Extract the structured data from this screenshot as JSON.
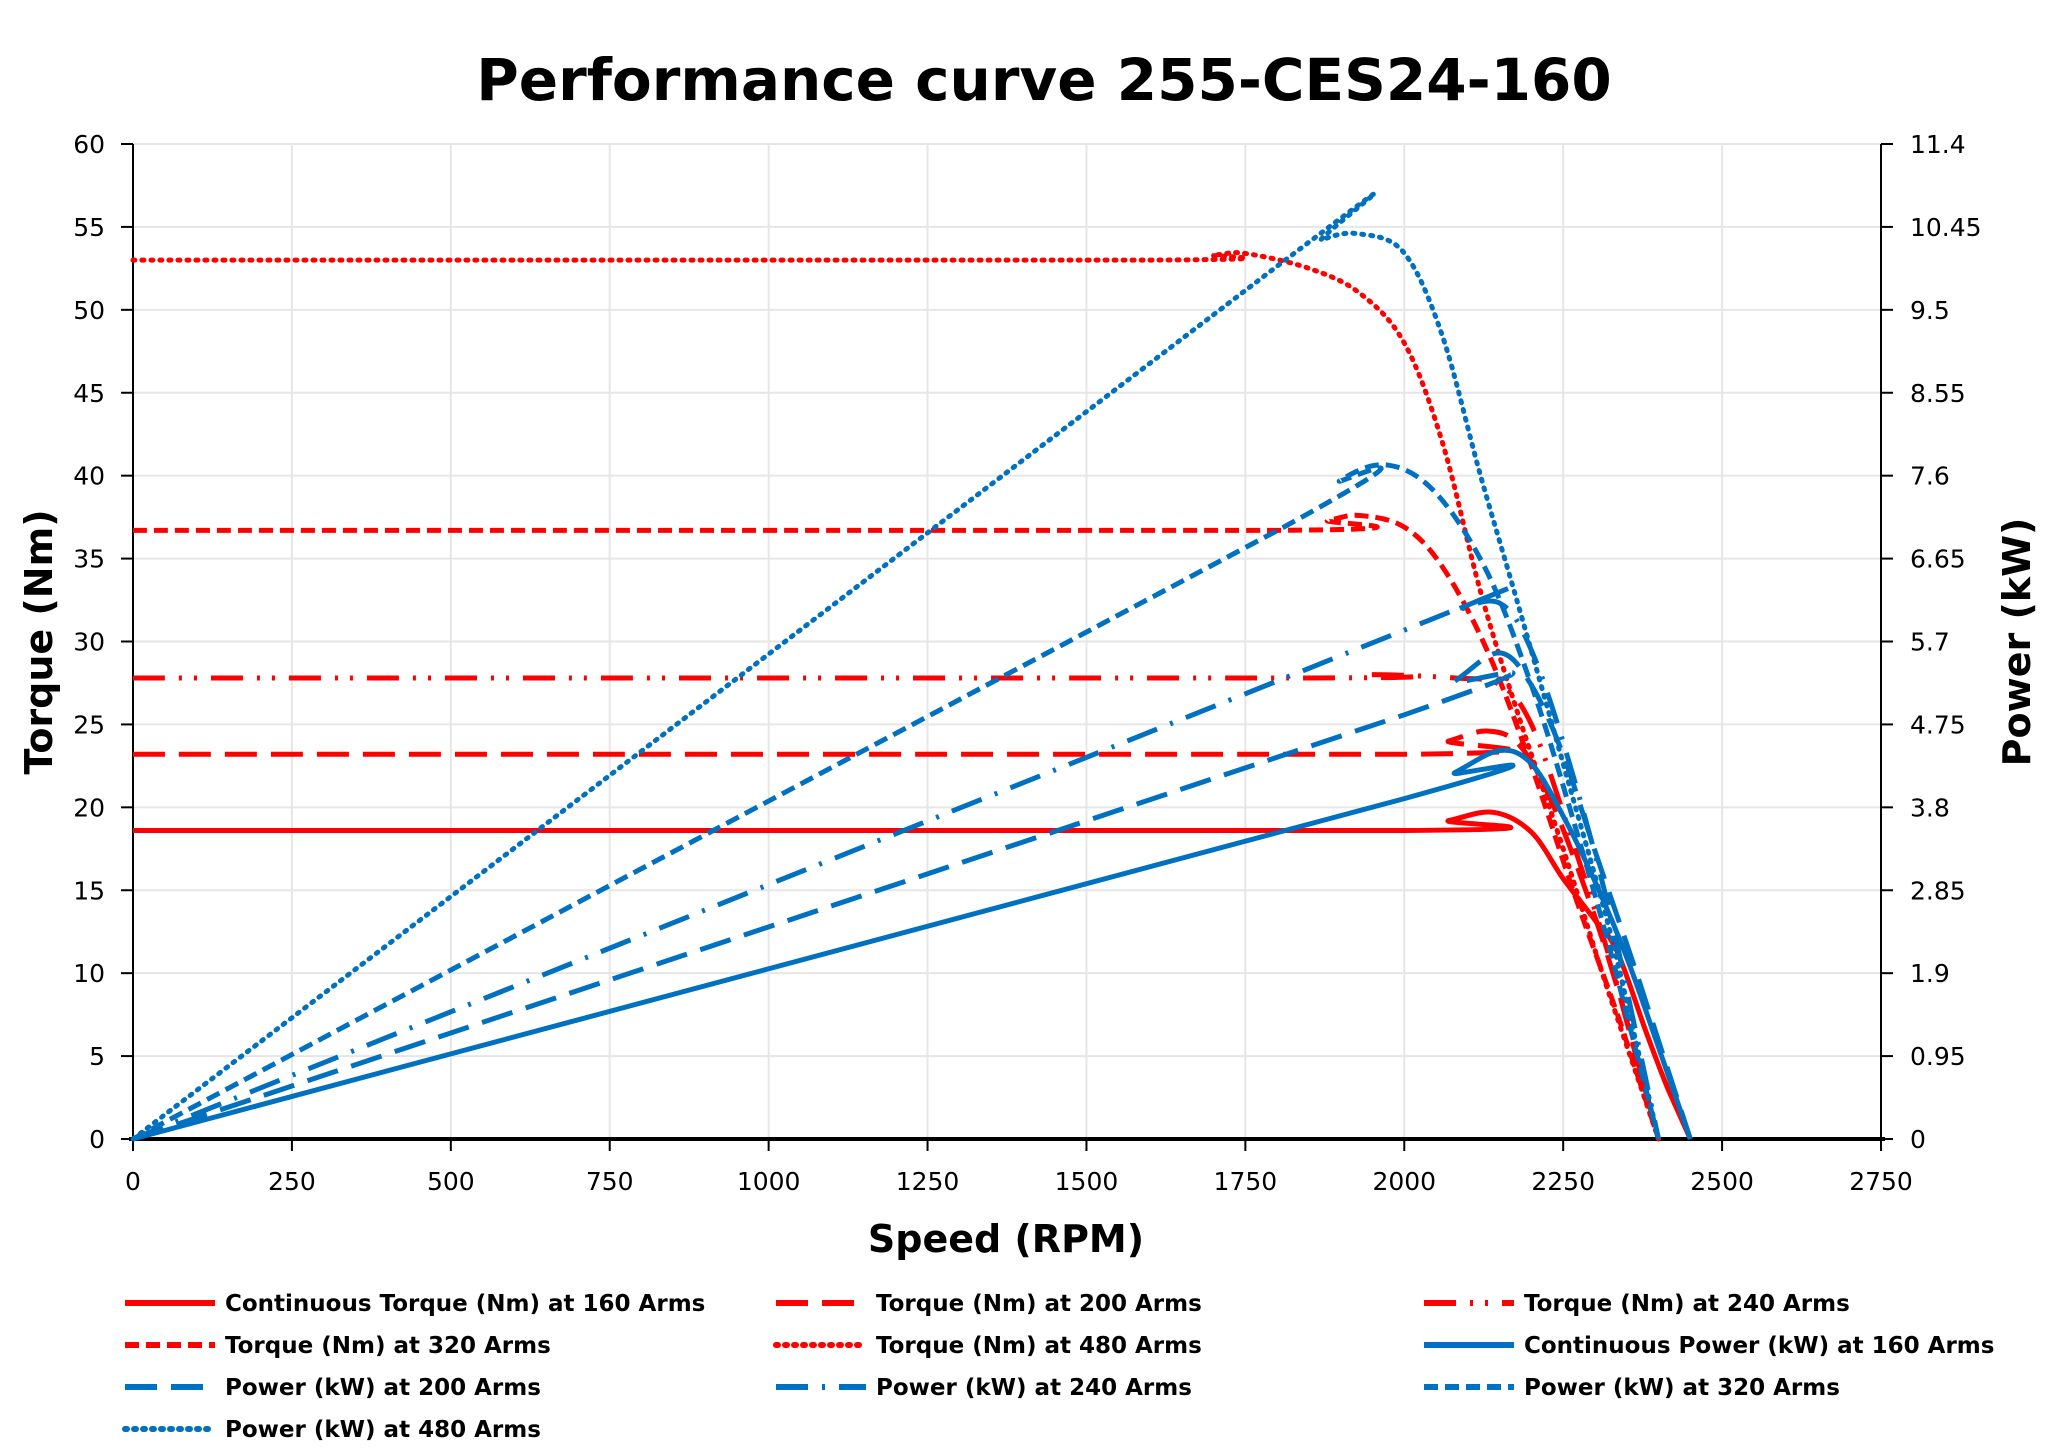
{
  "chart_data": {
    "type": "line",
    "title": "Performance curve 255-CES24-160",
    "xlabel": "Speed (RPM)",
    "ylabel": "Torque (Nm)",
    "y2label": "Power (kW)",
    "xlim": [
      0,
      2750
    ],
    "ylim": [
      0,
      60
    ],
    "y2lim": [
      0,
      11.4
    ],
    "x_ticks": [
      0,
      250,
      500,
      750,
      1000,
      1250,
      1500,
      1750,
      2000,
      2250,
      2500,
      2750
    ],
    "y_ticks": [
      0,
      5,
      10,
      15,
      20,
      25,
      30,
      35,
      40,
      45,
      50,
      55,
      60
    ],
    "y2_ticks": [
      "0",
      "0.95",
      "1.9",
      "2.85",
      "3.8",
      "4.75",
      "5.7",
      "6.65",
      "7.6",
      "8.55",
      "9.5",
      "10.45",
      "11.4"
    ],
    "grid": true,
    "legend_position": "bottom",
    "colors": {
      "torque": "#ff0000",
      "power": "#0070c0"
    },
    "series": [
      {
        "name": "Continuous Torque (Nm) at 160 Arms",
        "axis": "left",
        "color": "#ff0000",
        "style": "solid",
        "points": [
          [
            0,
            18.6
          ],
          [
            2000,
            18.6
          ],
          [
            2070,
            19.2
          ],
          [
            2140,
            19.7
          ],
          [
            2200,
            18.5
          ],
          [
            2250,
            15.7
          ],
          [
            2300,
            13.2
          ],
          [
            2335,
            11.3
          ],
          [
            2380,
            6.5
          ],
          [
            2415,
            3.0
          ],
          [
            2450,
            0
          ]
        ]
      },
      {
        "name": "Torque (Nm) at 200 Arms",
        "axis": "left",
        "color": "#ff0000",
        "style": "long-dash",
        "points": [
          [
            0,
            23.2
          ],
          [
            2000,
            23.2
          ],
          [
            2070,
            24.0
          ],
          [
            2130,
            24.6
          ],
          [
            2180,
            23.8
          ],
          [
            2230,
            20.5
          ],
          [
            2290,
            14.5
          ],
          [
            2340,
            8.5
          ],
          [
            2400,
            0
          ]
        ]
      },
      {
        "name": "Torque (Nm) at 240 Arms",
        "axis": "left",
        "color": "#ff0000",
        "style": "long-dash-dot-dot",
        "points": [
          [
            0,
            27.8
          ],
          [
            1850,
            27.8
          ],
          [
            1950,
            28.0
          ],
          [
            2080,
            27.8
          ],
          [
            2150,
            27.4
          ],
          [
            2200,
            25.0
          ],
          [
            2260,
            18.5
          ],
          [
            2330,
            10.0
          ],
          [
            2400,
            0
          ]
        ]
      },
      {
        "name": "Torque (Nm) at 320 Arms",
        "axis": "left",
        "color": "#ff0000",
        "style": "dash",
        "points": [
          [
            0,
            36.7
          ],
          [
            1800,
            36.7
          ],
          [
            1880,
            37.3
          ],
          [
            1930,
            37.6
          ],
          [
            2000,
            36.9
          ],
          [
            2060,
            34.5
          ],
          [
            2130,
            29.5
          ],
          [
            2200,
            22.5
          ],
          [
            2270,
            14.5
          ],
          [
            2340,
            7.0
          ],
          [
            2400,
            0
          ]
        ]
      },
      {
        "name": "Torque (Nm) at 480 Arms",
        "axis": "left",
        "color": "#ff0000",
        "style": "dot",
        "points": [
          [
            0,
            53.0
          ],
          [
            1600,
            53.0
          ],
          [
            1700,
            53.3
          ],
          [
            1750,
            53.4
          ],
          [
            1850,
            52.5
          ],
          [
            1930,
            51.0
          ],
          [
            2000,
            48.0
          ],
          [
            2060,
            42.0
          ],
          [
            2120,
            33.0
          ],
          [
            2180,
            25.5
          ],
          [
            2250,
            17.5
          ],
          [
            2320,
            9.0
          ],
          [
            2400,
            0
          ]
        ]
      },
      {
        "name": "Continuous Power (kW) at 160 Arms",
        "axis": "right",
        "color": "#0070c0",
        "style": "solid",
        "points": [
          [
            0,
            0
          ],
          [
            2000,
            3.9
          ],
          [
            2080,
            4.2
          ],
          [
            2150,
            4.45
          ],
          [
            2200,
            4.3
          ],
          [
            2250,
            3.7
          ],
          [
            2300,
            2.95
          ],
          [
            2350,
            2.08
          ],
          [
            2400,
            1.05
          ],
          [
            2450,
            0
          ]
        ]
      },
      {
        "name": "Power (kW) at 200 Arms",
        "axis": "right",
        "color": "#0070c0",
        "style": "long-dash",
        "points": [
          [
            0,
            0
          ],
          [
            2000,
            4.86
          ],
          [
            2080,
            5.25
          ],
          [
            2150,
            5.57
          ],
          [
            2200,
            5.2
          ],
          [
            2250,
            4.4
          ],
          [
            2300,
            3.3
          ],
          [
            2370,
            1.8
          ],
          [
            2450,
            0
          ]
        ]
      },
      {
        "name": "Power (kW) at 240 Arms",
        "axis": "right",
        "color": "#0070c0",
        "style": "dash-dot",
        "points": [
          [
            0,
            0
          ],
          [
            2000,
            5.83
          ],
          [
            2080,
            6.05
          ],
          [
            2150,
            6.14
          ],
          [
            2200,
            5.6
          ],
          [
            2260,
            4.3
          ],
          [
            2330,
            2.4
          ],
          [
            2400,
            0
          ]
        ]
      },
      {
        "name": "Power (kW) at 320 Arms",
        "axis": "right",
        "color": "#0070c0",
        "style": "dash",
        "points": [
          [
            0,
            0
          ],
          [
            1800,
            6.97
          ],
          [
            1900,
            7.55
          ],
          [
            1975,
            7.72
          ],
          [
            2050,
            7.4
          ],
          [
            2130,
            6.5
          ],
          [
            2200,
            5.2
          ],
          [
            2260,
            3.8
          ],
          [
            2330,
            2.0
          ],
          [
            2400,
            0
          ]
        ]
      },
      {
        "name": "Power (kW) at 480 Arms",
        "axis": "right",
        "color": "#0070c0",
        "style": "dot",
        "points": [
          [
            0,
            0
          ],
          [
            1800,
            10.0
          ],
          [
            1870,
            10.3
          ],
          [
            1930,
            10.37
          ],
          [
            2000,
            10.15
          ],
          [
            2060,
            9.2
          ],
          [
            2120,
            7.6
          ],
          [
            2180,
            6.1
          ],
          [
            2250,
            4.3
          ],
          [
            2330,
            2.2
          ],
          [
            2400,
            0
          ]
        ]
      }
    ]
  }
}
